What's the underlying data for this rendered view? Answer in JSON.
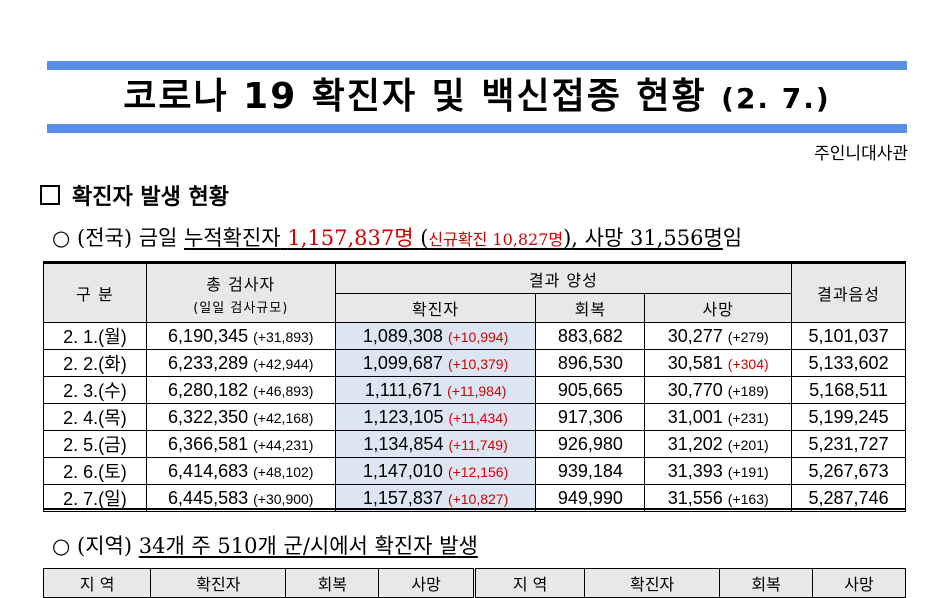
{
  "header": {
    "title": "코로나 19 확진자 및 백신접종 현황",
    "date": "(2. 7.)",
    "embassy": "주인니대사관"
  },
  "section1": {
    "title": "확진자 발생 현황"
  },
  "national": {
    "prefix": "○ (전국) 금일",
    "cumulative_label": "누적확진자",
    "cumulative_value": "1,157,837명",
    "new_open": "(",
    "new_label": "신규확진 10,827명",
    "new_close": ")",
    "deaths_text": ", 사망 31,556명",
    "suffix": "임"
  },
  "table": {
    "headers": {
      "category": "구  분",
      "total_tests": "총 검사자",
      "total_tests_sub": "(일일 검사규모)",
      "positive": "결과 양성",
      "confirmed": "확진자",
      "recovered": "회복",
      "deaths": "사망",
      "negative": "결과음성"
    },
    "rows": [
      {
        "date": "2. 1.(월)",
        "tests": "6,190,345",
        "tests_inc": "(+31,893)",
        "confirmed": "1,089,308",
        "confirmed_inc": "(+10,994)",
        "recovered": "883,682",
        "deaths": "30,277",
        "deaths_inc": "(+279)",
        "deaths_inc_red": false,
        "negative": "5,101,037"
      },
      {
        "date": "2. 2.(화)",
        "tests": "6,233,289",
        "tests_inc": "(+42,944)",
        "confirmed": "1,099,687",
        "confirmed_inc": "(+10,379)",
        "recovered": "896,530",
        "deaths": "30,581",
        "deaths_inc": "(+304)",
        "deaths_inc_red": true,
        "negative": "5,133,602"
      },
      {
        "date": "2. 3.(수)",
        "tests": "6,280,182",
        "tests_inc": "(+46,893)",
        "confirmed": "1,111,671",
        "confirmed_inc": "(+11,984)",
        "recovered": "905,665",
        "deaths": "30,770",
        "deaths_inc": "(+189)",
        "deaths_inc_red": false,
        "negative": "5,168,511"
      },
      {
        "date": "2. 4.(목)",
        "tests": "6,322,350",
        "tests_inc": "(+42,168)",
        "confirmed": "1,123,105",
        "confirmed_inc": "(+11,434)",
        "recovered": "917,306",
        "deaths": "31,001",
        "deaths_inc": "(+231)",
        "deaths_inc_red": false,
        "negative": "5,199,245"
      },
      {
        "date": "2. 5.(금)",
        "tests": "6,366,581",
        "tests_inc": "(+44,231)",
        "confirmed": "1,134,854",
        "confirmed_inc": "(+11,749)",
        "recovered": "926,980",
        "deaths": "31,202",
        "deaths_inc": "(+201)",
        "deaths_inc_red": false,
        "negative": "5,231,727"
      },
      {
        "date": "2. 6.(토)",
        "tests": "6,414,683",
        "tests_inc": "(+48,102)",
        "confirmed": "1,147,010",
        "confirmed_inc": "(+12,156)",
        "recovered": "939,184",
        "deaths": "31,393",
        "deaths_inc": "(+191)",
        "deaths_inc_red": false,
        "negative": "5,267,673"
      },
      {
        "date": "2. 7.(일)",
        "tests": "6,445,583",
        "tests_inc": "(+30,900)",
        "confirmed": "1,157,837",
        "confirmed_inc": "(+10,827)",
        "recovered": "949,990",
        "deaths": "31,556",
        "deaths_inc": "(+163)",
        "deaths_inc_red": false,
        "negative": "5,287,746"
      }
    ]
  },
  "regional": {
    "prefix": "○ (지역)",
    "text": "34개 주 510개 군/시에서 확진자 발생",
    "headers": [
      "지 역",
      "확진자",
      "회복",
      "사망",
      "지 역",
      "확진자",
      "회복",
      "사망"
    ]
  },
  "colors": {
    "bar": "#5b8ee6",
    "highlight": "#d40000",
    "confirmed_bg": "#dce6f2",
    "header_bg": "#e8e8e8"
  }
}
